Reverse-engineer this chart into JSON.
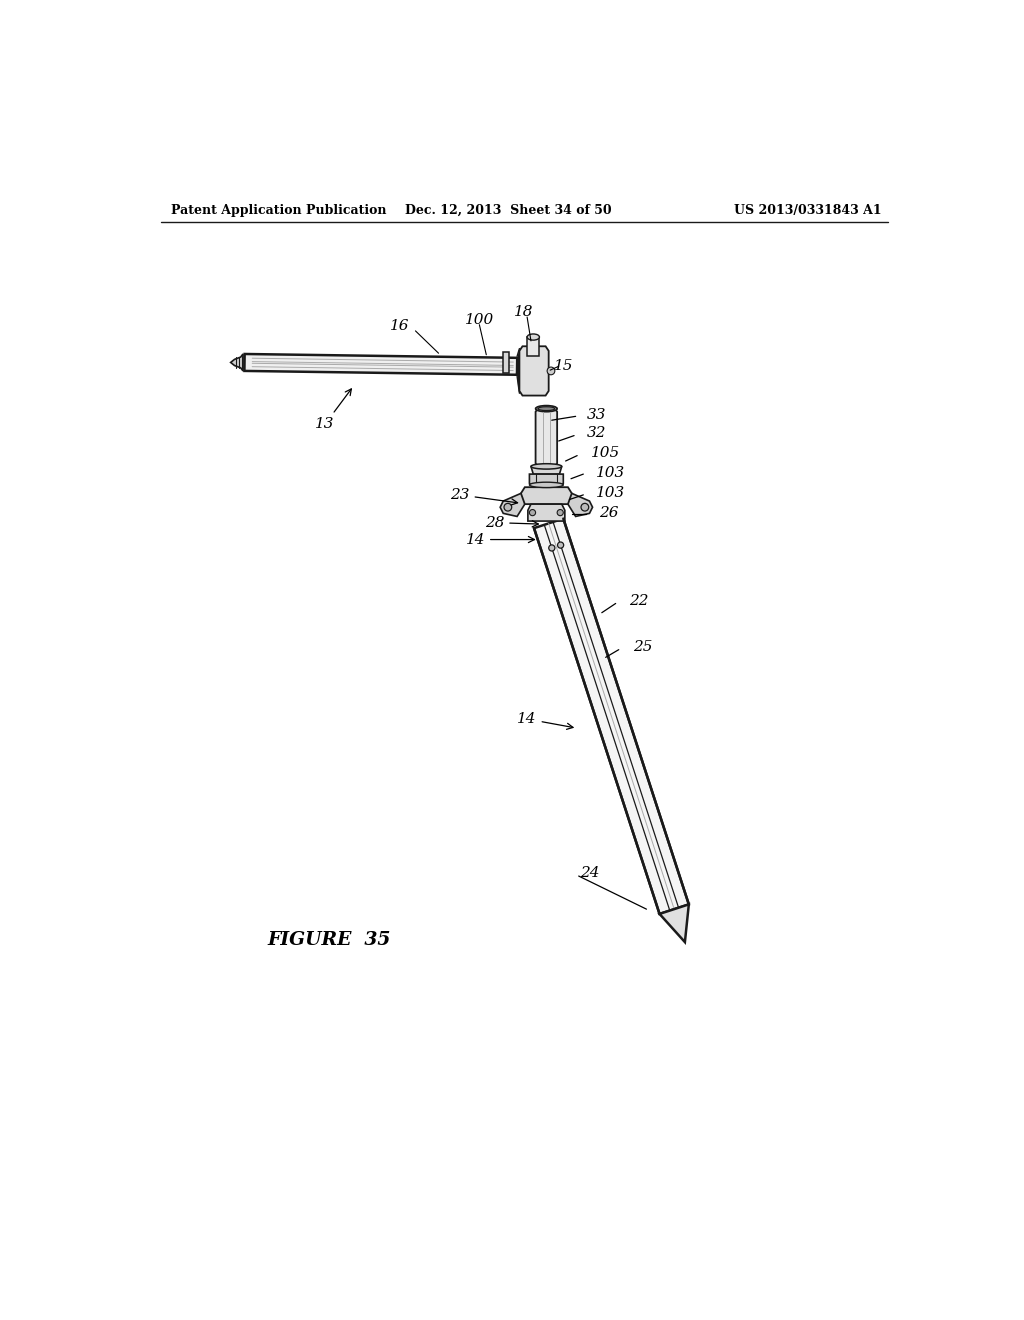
{
  "background_color": "#ffffff",
  "header_left": "Patent Application Publication",
  "header_center": "Dec. 12, 2013  Sheet 34 of 50",
  "header_right": "US 2013/0331843 A1",
  "figure_label": "FIGURE  35"
}
